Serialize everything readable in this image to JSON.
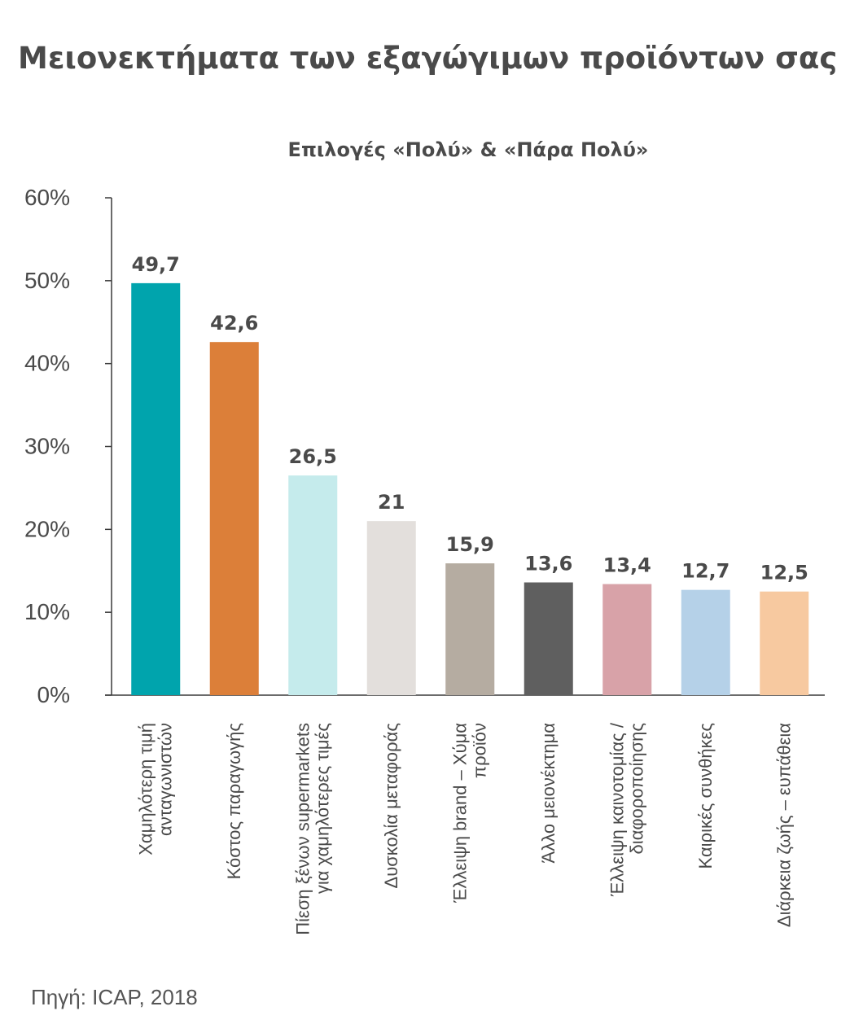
{
  "title": "Μειονεκτήματα των εξαγώγιμων προϊόντων σας",
  "source": "Πηγή: ICAP, 2018",
  "chart_data": {
    "type": "bar",
    "title": "Επιλογές «Πολύ» & «Πάρα Πολύ»",
    "xlabel": "",
    "ylabel": "",
    "ylim": [
      0,
      60
    ],
    "yticks": [
      "0%",
      "10%",
      "20%",
      "30%",
      "40%",
      "50%",
      "60%"
    ],
    "ytick_values": [
      0,
      10,
      20,
      30,
      40,
      50,
      60
    ],
    "grid": false,
    "legend": "none",
    "categories": [
      [
        "Χαμηλότερη τιμή",
        "ανταγωνιστών"
      ],
      [
        "Κόστος παραγωγής"
      ],
      [
        "Πίεση ξένων supermarkets",
        "για χαμηλότερες τιμές"
      ],
      [
        "Δυσκολία μεταφοράς"
      ],
      [
        "Έλλειψη brand – Χύμα",
        "προϊόν"
      ],
      [
        "Άλλο μειονέκτημα"
      ],
      [
        "Έλλειψη καινοτομίας /",
        "διαφοροποίησης"
      ],
      [
        "Καιρικές συνθήκες"
      ],
      [
        "Διάρκεια ζωής – ευπάθεια"
      ]
    ],
    "values": [
      49.7,
      42.6,
      26.5,
      21,
      15.9,
      13.6,
      13.4,
      12.7,
      12.5
    ],
    "value_labels": [
      "49,7",
      "42,6",
      "26,5",
      "21",
      "15,9",
      "13,6",
      "13,4",
      "12,7",
      "12,5"
    ],
    "colors": [
      "#00a4ad",
      "#dc7f39",
      "#c5ebec",
      "#e3dfdc",
      "#b5aca1",
      "#5f5f5f",
      "#d8a2a8",
      "#b5d1e8",
      "#f7c9a0"
    ]
  }
}
